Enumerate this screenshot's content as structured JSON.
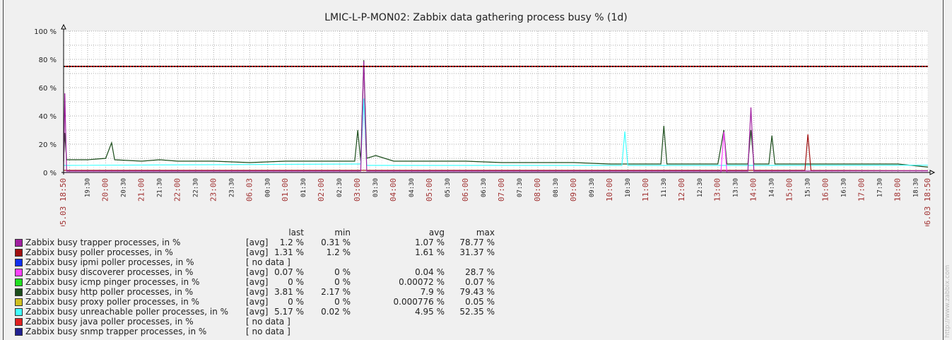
{
  "title": "LMIC-L-P-MON02: Zabbix data gathering process busy % (1d)",
  "watermark": "http://www.zabbix.com",
  "chart_data": {
    "type": "line",
    "title": "LMIC-L-P-MON02: Zabbix data gathering process busy % (1d)",
    "ylim": [
      0,
      100
    ],
    "y_ticks": [
      "0 %",
      "20 %",
      "40 %",
      "60 %",
      "80 %",
      "100 %"
    ],
    "y_tick_values": [
      0,
      20,
      40,
      60,
      80,
      100
    ],
    "x_range": [
      "05.03 18:50",
      "06.03 18:50"
    ],
    "x_start_label": "05.03 18:50",
    "x_end_label": "06.03 18:50",
    "x_ticks": [
      "19:30",
      "20:00",
      "20:30",
      "21:00",
      "21:30",
      "22:00",
      "22:30",
      "23:00",
      "23:30",
      "06.03",
      "00:30",
      "01:00",
      "01:30",
      "02:00",
      "02:30",
      "03:00",
      "03:30",
      "04:00",
      "04:30",
      "05:00",
      "05:30",
      "06:00",
      "06:30",
      "07:00",
      "07:30",
      "08:00",
      "08:30",
      "09:00",
      "09:30",
      "10:00",
      "10:30",
      "11:00",
      "11:30",
      "12:00",
      "12:30",
      "13:00",
      "13:30",
      "14:00",
      "14:30",
      "15:00",
      "15:30",
      "16:00",
      "16:30",
      "17:00",
      "17:30",
      "18:00",
      "18:30"
    ],
    "grid": true,
    "trigger_line": {
      "value": 75,
      "colors": [
        "#000000",
        "#cc0000"
      ]
    },
    "tick_colors": {
      "hour": "#a03030",
      "half": "#222222"
    },
    "series": [
      {
        "name": "Zabbix busy http poller processes, in %",
        "color": "#1b4d1b",
        "points": [
          [
            "18:50",
            8
          ],
          [
            "18:52",
            28
          ],
          [
            "18:55",
            9
          ],
          [
            "19:30",
            9
          ],
          [
            "20:00",
            10
          ],
          [
            "20:10",
            21
          ],
          [
            "20:15",
            9
          ],
          [
            "21:00",
            8
          ],
          [
            "21:30",
            9
          ],
          [
            "22:00",
            8
          ],
          [
            "23:00",
            8
          ],
          [
            "00:00",
            7
          ],
          [
            "01:00",
            8
          ],
          [
            "02:00",
            8
          ],
          [
            "02:55",
            8
          ],
          [
            "03:00",
            30
          ],
          [
            "03:05",
            8
          ],
          [
            "03:10",
            79.43
          ],
          [
            "03:15",
            10
          ],
          [
            "03:30",
            12
          ],
          [
            "04:00",
            8
          ],
          [
            "05:00",
            8
          ],
          [
            "06:00",
            8
          ],
          [
            "07:00",
            7
          ],
          [
            "08:00",
            7
          ],
          [
            "09:00",
            7
          ],
          [
            "10:00",
            6
          ],
          [
            "11:00",
            6
          ],
          [
            "11:25",
            6
          ],
          [
            "11:30",
            33
          ],
          [
            "11:35",
            6
          ],
          [
            "12:00",
            6
          ],
          [
            "13:00",
            6
          ],
          [
            "13:10",
            30
          ],
          [
            "13:15",
            6
          ],
          [
            "13:50",
            6
          ],
          [
            "13:55",
            30
          ],
          [
            "14:00",
            6
          ],
          [
            "14:25",
            6
          ],
          [
            "14:30",
            26
          ],
          [
            "14:35",
            6
          ],
          [
            "15:00",
            6
          ],
          [
            "16:00",
            6
          ],
          [
            "17:00",
            6
          ],
          [
            "18:00",
            6
          ],
          [
            "18:50",
            3.81
          ]
        ]
      },
      {
        "name": "Zabbix busy unreachable poller processes, in %",
        "color": "#40ffff",
        "points": [
          [
            "18:50",
            5
          ],
          [
            "03:05",
            6
          ],
          [
            "03:10",
            52.35
          ],
          [
            "03:15",
            5
          ],
          [
            "10:20",
            5
          ],
          [
            "10:25",
            29
          ],
          [
            "10:30",
            5
          ],
          [
            "14:00",
            5
          ],
          [
            "18:50",
            5.17
          ]
        ]
      },
      {
        "name": "Zabbix busy poller processes, in %",
        "color": "#a01010",
        "points": [
          [
            "18:50",
            1.5
          ],
          [
            "15:25",
            1.5
          ],
          [
            "15:30",
            27
          ],
          [
            "15:35",
            1.5
          ],
          [
            "18:50",
            1.31
          ]
        ]
      },
      {
        "name": "Zabbix busy discoverer processes, in %",
        "color": "#ff40ff",
        "points": [
          [
            "18:50",
            0
          ],
          [
            "13:05",
            0
          ],
          [
            "13:10",
            28.7
          ],
          [
            "13:15",
            0
          ],
          [
            "18:50",
            0.07
          ]
        ]
      },
      {
        "name": "Zabbix busy trapper processes, in %",
        "color": "#a020a0",
        "points": [
          [
            "18:50",
            1
          ],
          [
            "18:52",
            56
          ],
          [
            "18:55",
            1
          ],
          [
            "03:05",
            1
          ],
          [
            "03:10",
            78.77
          ],
          [
            "03:15",
            1
          ],
          [
            "13:50",
            1
          ],
          [
            "13:55",
            46
          ],
          [
            "14:00",
            1
          ],
          [
            "18:50",
            1.2
          ]
        ]
      }
    ]
  },
  "legend": {
    "headers": {
      "last": "last",
      "min": "min",
      "avg": "avg",
      "max": "max"
    },
    "rows": [
      {
        "name": "Zabbix busy trapper processes, in %",
        "color": "#a020a0",
        "func": "[avg]",
        "last": "1.2 %",
        "min": "0.31 %",
        "avg": "1.07 %",
        "max": "78.77 %"
      },
      {
        "name": "Zabbix busy poller processes, in %",
        "color": "#a01010",
        "func": "[avg]",
        "last": "1.31 %",
        "min": "1.2 %",
        "avg": "1.61 %",
        "max": "31.37 %"
      },
      {
        "name": "Zabbix busy ipmi poller processes, in %",
        "color": "#1030f0",
        "func": "[ no data ]"
      },
      {
        "name": "Zabbix busy discoverer processes, in %",
        "color": "#ff40ff",
        "func": "[avg]",
        "last": "0.07 %",
        "min": "0 %",
        "avg": "0.04 %",
        "max": "28.7 %"
      },
      {
        "name": "Zabbix busy icmp pinger processes, in %",
        "color": "#20e020",
        "func": "[avg]",
        "last": "0 %",
        "min": "0 %",
        "avg": "0.00072 %",
        "max": "0.07 %"
      },
      {
        "name": "Zabbix busy http poller processes, in %",
        "color": "#1b4d1b",
        "func": "[avg]",
        "last": "3.81 %",
        "min": "2.17 %",
        "avg": "7.9 %",
        "max": "79.43 %"
      },
      {
        "name": "Zabbix busy proxy poller processes, in %",
        "color": "#d0c020",
        "func": "[avg]",
        "last": "0 %",
        "min": "0 %",
        "avg": "0.000776 %",
        "max": "0.05 %"
      },
      {
        "name": "Zabbix busy unreachable poller processes, in %",
        "color": "#40ffff",
        "func": "[avg]",
        "last": "5.17 %",
        "min": "0.02 %",
        "avg": "4.95 %",
        "max": "52.35 %"
      },
      {
        "name": "Zabbix busy java poller processes, in %",
        "color": "#e02020",
        "func": "[ no data ]"
      },
      {
        "name": "Zabbix busy snmp trapper processes, in %",
        "color": "#202090",
        "func": "[ no data ]"
      }
    ]
  }
}
